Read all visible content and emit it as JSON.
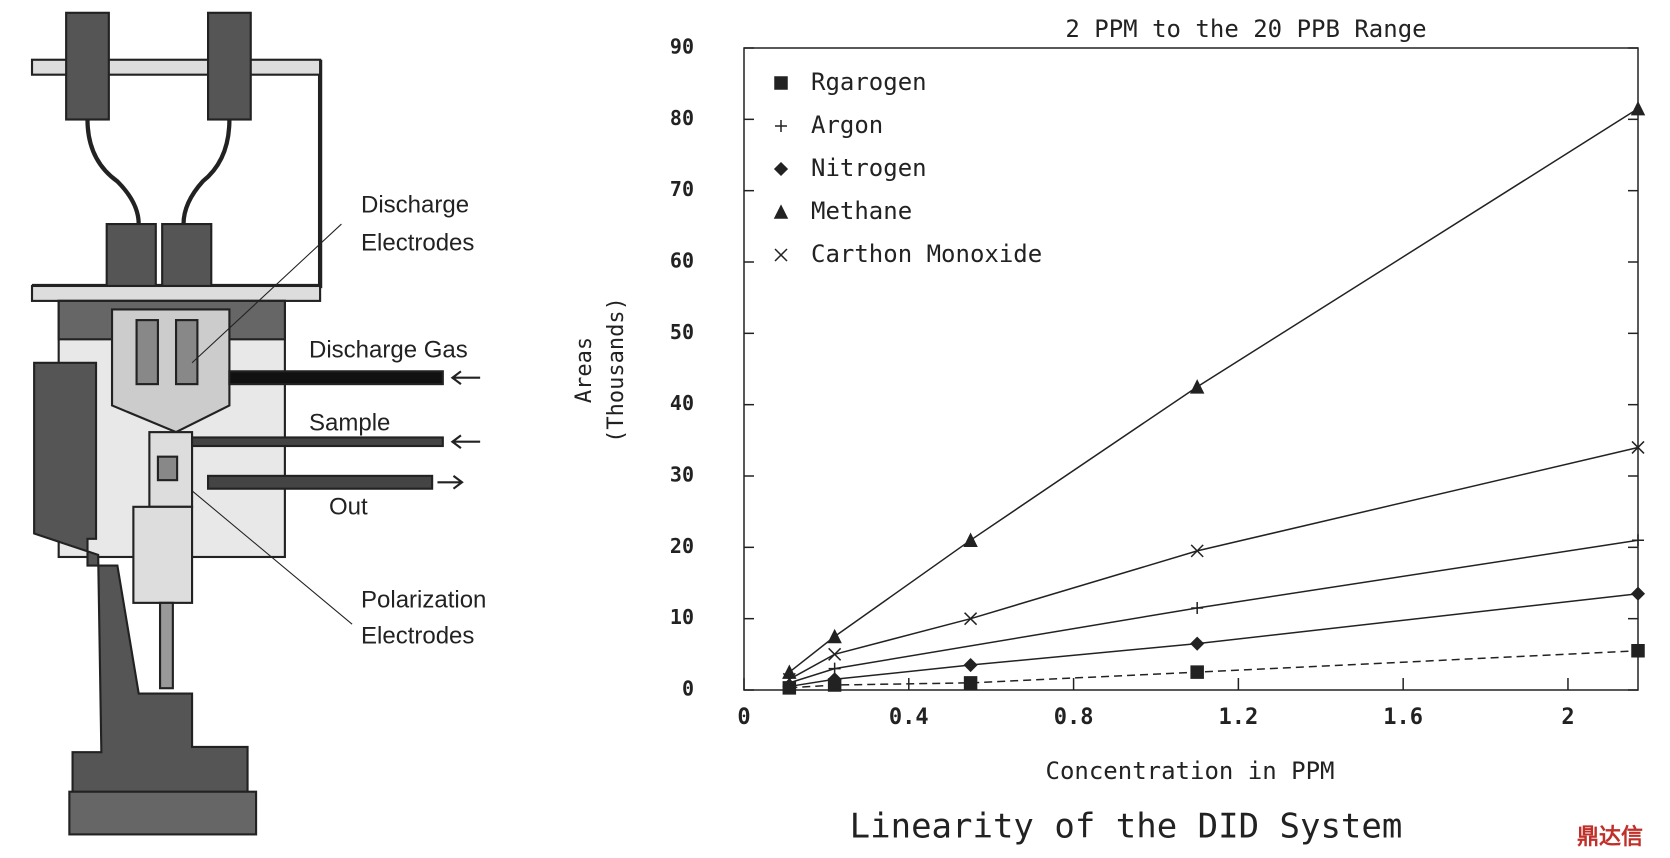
{
  "diagram": {
    "labels": [
      [
        "Discharge",
        "Electrodes"
      ],
      [
        "Discharge Gas"
      ],
      [
        "Sample"
      ],
      [
        "Out"
      ],
      [
        "Polarization",
        "Electrodes"
      ]
    ]
  },
  "chart_data": {
    "type": "scatter",
    "title": "2 PPM to the 20 PPB Range",
    "x_label": "Concentration in PPM",
    "y_label": [
      "Areas",
      "(Thousands)"
    ],
    "caption": "Linearity of the DID System",
    "xlim": [
      0,
      2.17
    ],
    "ylim": [
      0,
      90
    ],
    "xticks": [
      0,
      0.4,
      0.8,
      1.2,
      1.6,
      2
    ],
    "yticks": [
      0,
      10,
      20,
      30,
      40,
      50,
      60,
      70,
      80,
      90
    ],
    "series": [
      {
        "name": "Rgarogen",
        "marker": "square",
        "line_style": "dashed",
        "color": "#222222",
        "x": [
          0.11,
          0.22,
          0.55,
          1.1,
          2.17
        ],
        "values": [
          0.3,
          0.7,
          1,
          2.5,
          5.5
        ]
      },
      {
        "name": "Argon",
        "marker": "plus",
        "line_style": "solid",
        "color": "#222222",
        "x": [
          0.11,
          0.22,
          1.1,
          2.17
        ],
        "values": [
          1,
          3,
          11.5,
          21
        ]
      },
      {
        "name": "Nitrogen",
        "marker": "diamond",
        "line_style": "solid",
        "color": "#222222",
        "x": [
          0.11,
          0.22,
          0.55,
          1.1,
          2.17
        ],
        "values": [
          0.5,
          1.5,
          3.5,
          6.5,
          13.5
        ]
      },
      {
        "name": "Methane",
        "marker": "triangle",
        "line_style": "solid",
        "color": "#222222",
        "x": [
          0.11,
          0.22,
          0.55,
          1.1,
          2.17
        ],
        "values": [
          2.5,
          7.5,
          21,
          42.5,
          81.5
        ]
      },
      {
        "name": "Carthon Monoxide",
        "marker": "x",
        "line_style": "solid",
        "color": "#222222",
        "x": [
          0.11,
          0.22,
          0.55,
          1.1,
          2.17
        ],
        "values": [
          1.5,
          5,
          10,
          19.5,
          34
        ]
      }
    ]
  },
  "watermark": "鼎达信"
}
